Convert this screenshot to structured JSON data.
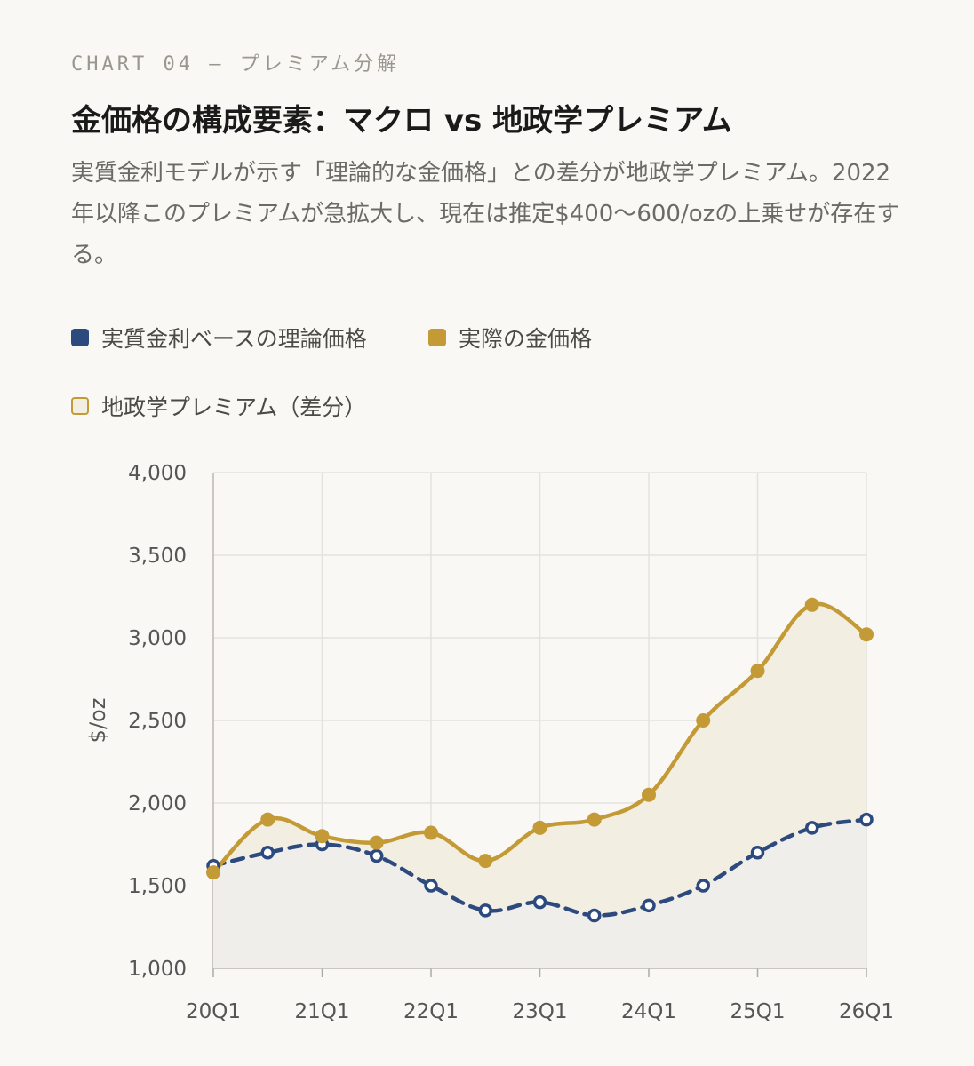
{
  "header": {
    "eyebrow": "CHART 04 — プレミアム分解",
    "title": "金価格の構成要素：マクロ vs 地政学プレミアム",
    "subtitle": "実質金利モデルが示す「理論的な金価格」との差分が地政学プレミアム。2022年以降このプレミアムが急拡大し、現在は推定$400〜600/ozの上乗せが存在する。"
  },
  "colors": {
    "theory": "#2c4a7e",
    "actual": "#c39a35",
    "premium_fill": "#f3eee2",
    "theory_fill": "#efeeea",
    "grid": "#e4e2dc",
    "background": "#f9f8f4"
  },
  "legend": [
    {
      "label": "実質金利ベースの理論価格",
      "key": "theory"
    },
    {
      "label": "実際の金価格",
      "key": "actual"
    },
    {
      "label": "地政学プレミアム（差分）",
      "key": "premium"
    }
  ],
  "chart_data": {
    "type": "line",
    "ylabel": "$/oz",
    "xlabel": "",
    "ylim": [
      1000,
      4000
    ],
    "yticks": [
      1000,
      1500,
      2000,
      2500,
      3000,
      3500,
      4000
    ],
    "ytick_labels": [
      "1,000",
      "1,500",
      "2,000",
      "2,500",
      "3,000",
      "3,500",
      "4,000"
    ],
    "x_tick_labels": [
      "20Q1",
      "21Q1",
      "22Q1",
      "23Q1",
      "24Q1",
      "25Q1",
      "26Q1"
    ],
    "x_points": [
      "20Q1",
      "20Q3",
      "21Q1",
      "21Q3",
      "22Q1",
      "22Q3",
      "23Q1",
      "23Q3",
      "24Q1",
      "24Q3",
      "25Q1",
      "25Q3",
      "26Q1"
    ],
    "grid": true,
    "series": [
      {
        "name": "実質金利ベースの理論価格",
        "key": "theory",
        "style": "dashed",
        "values": [
          1620,
          1700,
          1750,
          1680,
          1500,
          1350,
          1400,
          1320,
          1380,
          1500,
          1700,
          1850,
          1900
        ]
      },
      {
        "name": "実際の金価格",
        "key": "actual",
        "style": "solid",
        "values": [
          1580,
          1900,
          1800,
          1760,
          1820,
          1650,
          1850,
          1900,
          2050,
          2500,
          2800,
          3200,
          3020
        ]
      }
    ],
    "fill_label": "地政学プレミアム（差分）"
  }
}
